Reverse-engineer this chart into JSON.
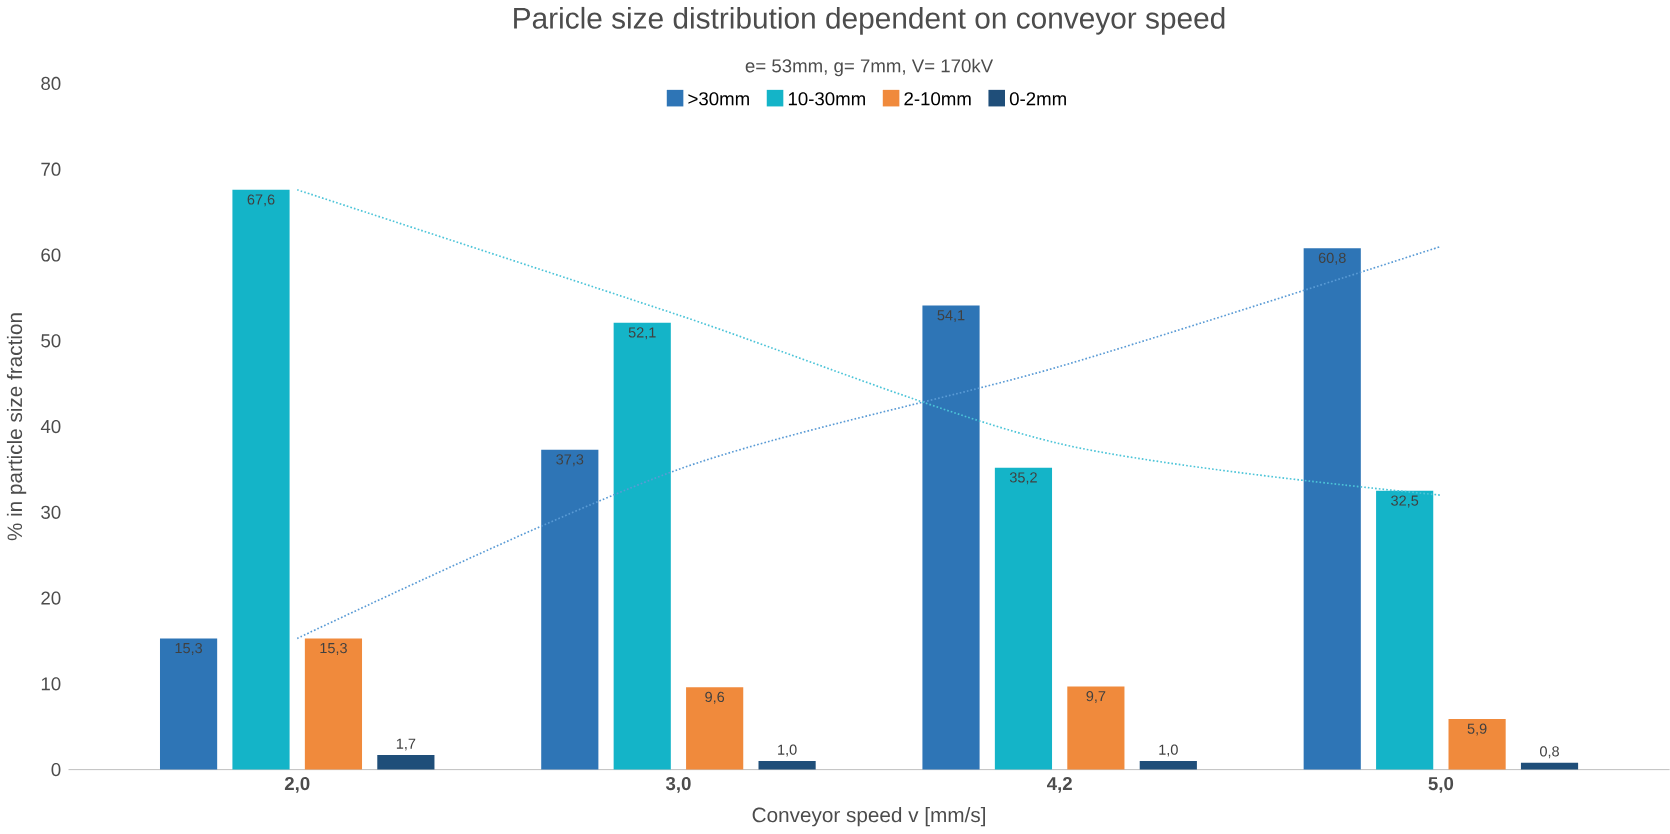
{
  "chart_data": {
    "type": "bar",
    "title": "Paricle size distribution dependent on conveyor speed",
    "subtitle": "e= 53mm, g= 7mm,  V= 170kV",
    "xlabel": "Conveyor speed v [mm/s]",
    "ylabel": "% in particle size fraction",
    "categories": [
      "2,0",
      "3,0",
      "4,2",
      "5,0"
    ],
    "series": [
      {
        "name": ">30mm",
        "color": "#2e75b6",
        "values": [
          15.3,
          37.3,
          54.1,
          60.8
        ],
        "value_labels": [
          "15,3",
          "37,3",
          "54,1",
          "60,8"
        ]
      },
      {
        "name": "10-30mm",
        "color": "#14b4c8",
        "values": [
          67.6,
          52.1,
          35.2,
          32.5
        ],
        "value_labels": [
          "67,6",
          "52,1",
          "35,2",
          "32,5"
        ]
      },
      {
        "name": "2-10mm",
        "color": "#f08a3c",
        "values": [
          15.3,
          9.6,
          9.7,
          5.9
        ],
        "value_labels": [
          "15,3",
          "9,6",
          "9,7",
          "5,9"
        ]
      },
      {
        "name": "0-2mm",
        "color": "#1f4e79",
        "values": [
          1.7,
          1.0,
          1.0,
          0.8
        ],
        "value_labels": [
          "1,7",
          "1,0",
          "1,0",
          "0,8"
        ]
      },
      {
        "type": "line",
        "color": "#5a9bd5",
        "line_style": "dotted",
        "values": [
          15.3,
          35,
          47,
          61
        ]
      },
      {
        "type": "line",
        "color": "#4cc4d8",
        "line_style": "dotted",
        "values": [
          67.6,
          53,
          38,
          32
        ]
      }
    ],
    "ylim": [
      0,
      80
    ],
    "yticks": [
      0,
      10,
      20,
      30,
      40,
      50,
      60,
      70,
      80
    ],
    "legend": "top",
    "grid": false
  }
}
